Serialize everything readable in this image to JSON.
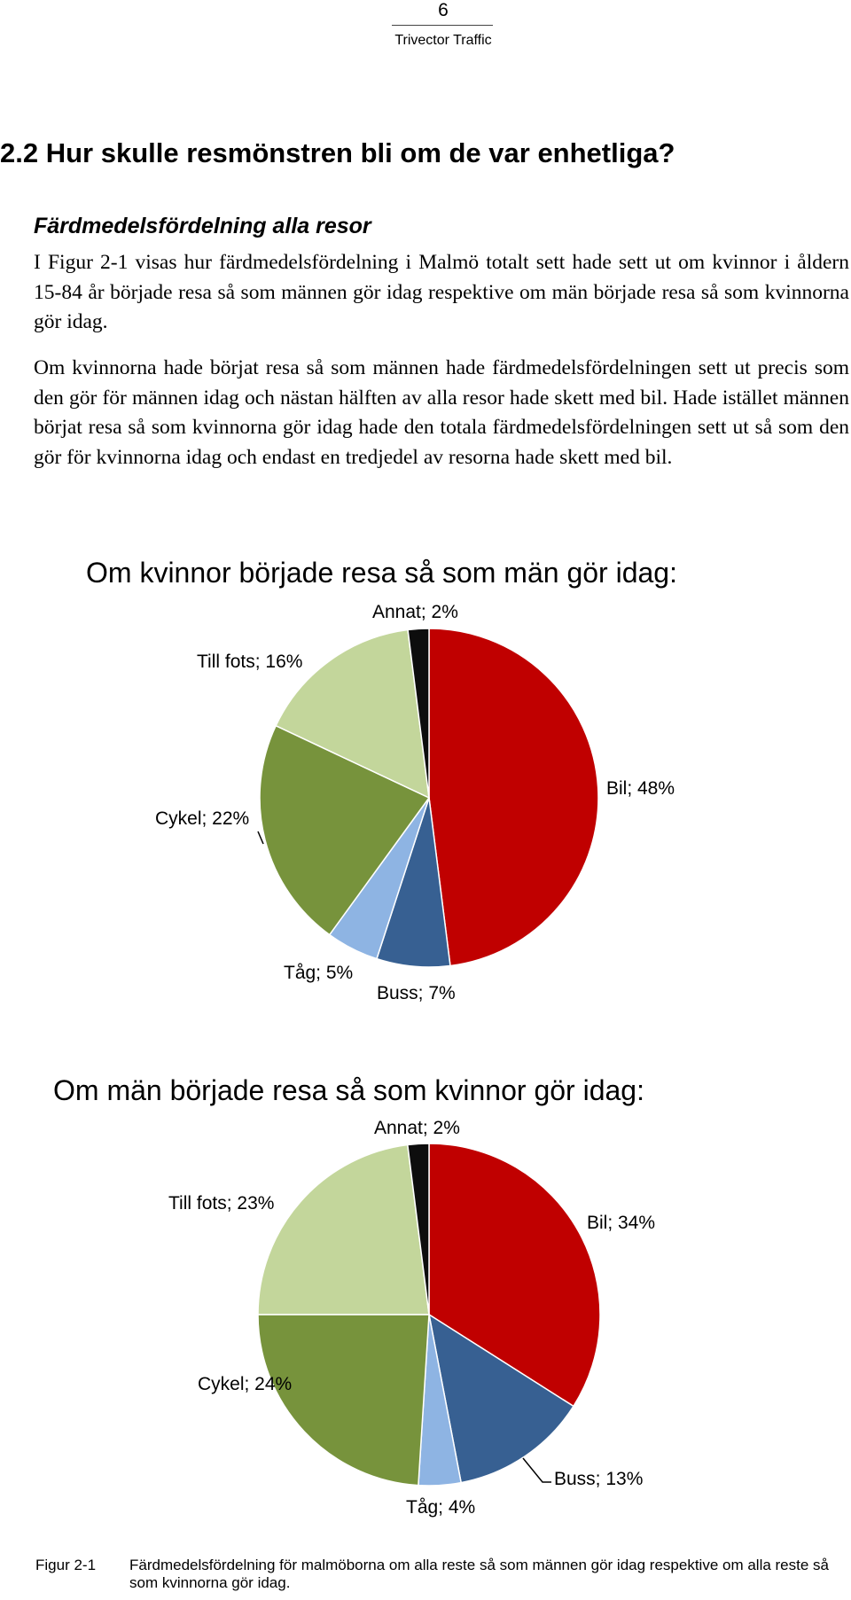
{
  "header": {
    "page_number": "6",
    "organization": "Trivector Traffic"
  },
  "section": {
    "heading": "2.2  Hur skulle resmönstren bli om de var enhetliga?",
    "subheading": "Färdmedelsfördelning alla resor",
    "paragraphs": [
      "I Figur 2-1 visas hur färdmedelsfördelning i Malmö totalt sett hade sett ut om kvinnor i åldern 15-84 år började resa så som männen gör idag respektive om män började resa så som kvinnorna gör idag.",
      "Om kvinnorna hade börjat resa så som männen hade färdmedelsfördelningen sett ut precis som den gör för männen idag och nästan hälften av alla resor hade skett med bil. Hade istället männen börjat resa så som kvinnorna gör idag hade den totala färdmedelsfördelningen sett ut så som den gör för kvinnorna idag och endast en tredjedel av resorna hade skett med bil."
    ]
  },
  "chart_data": [
    {
      "type": "pie",
      "title": "Om kvinnor började resa så som män gör idag:",
      "categories": [
        "Bil",
        "Buss",
        "Tåg",
        "Cykel",
        "Till fots",
        "Annat"
      ],
      "values": [
        48,
        7,
        5,
        22,
        16,
        2
      ],
      "labels": [
        "Bil; 48%",
        "Buss; 7%",
        "Tåg; 5%",
        "Cykel; 22%",
        "Till fots; 16%",
        "Annat; 2%"
      ],
      "colors": [
        "#c00000",
        "#376092",
        "#8eb4e3",
        "#77933c",
        "#c3d69b",
        "#0d0d0d"
      ]
    },
    {
      "type": "pie",
      "title": "Om män började resa så som kvinnor gör idag:",
      "categories": [
        "Bil",
        "Buss",
        "Tåg",
        "Cykel",
        "Till fots",
        "Annat"
      ],
      "values": [
        34,
        13,
        4,
        24,
        23,
        2
      ],
      "labels": [
        "Bil; 34%",
        "Buss; 13%",
        "Tåg; 4%",
        "Cykel; 24%",
        "Till fots; 23%",
        "Annat; 2%"
      ],
      "colors": [
        "#c00000",
        "#376092",
        "#8eb4e3",
        "#77933c",
        "#c3d69b",
        "#0d0d0d"
      ]
    }
  ],
  "figure": {
    "label": "Figur 2-1",
    "caption": "Färdmedelsfördelning för malmöborna om alla reste så som männen gör idag respektive om alla reste så som kvinnorna gör idag."
  }
}
